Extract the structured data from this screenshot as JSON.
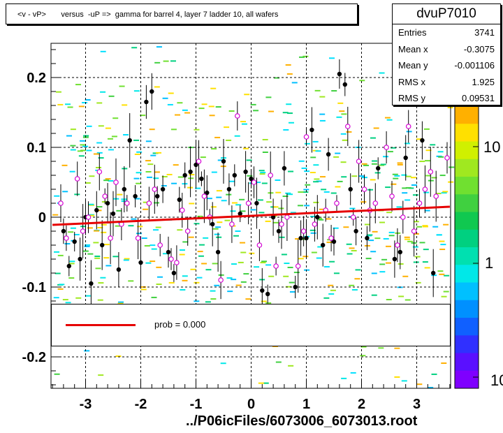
{
  "title": "<v - vP>       versus  -uP =>  gamma for barrel 4, layer 7 ladder 10, all wafers",
  "stats": {
    "name": "dvuP7010",
    "rows": [
      {
        "label": "Entries",
        "value": "3741"
      },
      {
        "label": "Mean x",
        "value": "-0.3075"
      },
      {
        "label": "Mean y",
        "value": "-0.001106"
      },
      {
        "label": "RMS x",
        "value": "1.925"
      },
      {
        "label": "RMS y",
        "value": "0.09531"
      }
    ]
  },
  "legend": {
    "label": "prob = 0.000"
  },
  "footer": "../P06icFiles/6073006_6073013.root",
  "colorbar": {
    "tick_labels": [
      "10",
      "1",
      "10"
    ]
  },
  "chart_data": {
    "type": "scatter",
    "xlim": [
      -3.65,
      3.65
    ],
    "ylim": [
      -0.25,
      0.25
    ],
    "x_ticks": [
      -3,
      -2,
      -1,
      0,
      1,
      2,
      3
    ],
    "x_tick_labels": [
      "-3",
      "-2",
      "-1",
      "0",
      "1",
      "2",
      "3"
    ],
    "y_ticks": [
      -0.2,
      -0.1,
      0,
      0.1,
      0.2
    ],
    "y_tick_labels": [
      "-0.2",
      "-0.1",
      "0",
      "0.1",
      "0.2"
    ],
    "grid": true,
    "fit_line": {
      "x": [
        -3.6,
        3.6
      ],
      "y": [
        -0.011,
        0.015
      ],
      "color": "#e60000"
    },
    "black_points": [
      [
        -3.4,
        -0.02
      ],
      [
        -3.3,
        -0.07
      ],
      [
        -3.2,
        -0.035
      ],
      [
        -3.1,
        -0.06
      ],
      [
        -3.0,
        0.0
      ],
      [
        -2.9,
        -0.095
      ],
      [
        -2.8,
        0.01
      ],
      [
        -2.7,
        -0.04
      ],
      [
        -2.6,
        0.02
      ],
      [
        -2.5,
        0.005
      ],
      [
        -2.4,
        -0.075
      ],
      [
        -2.3,
        0.04
      ],
      [
        -2.2,
        0.11
      ],
      [
        -2.1,
        0.03
      ],
      [
        -2.0,
        -0.065
      ],
      [
        -1.9,
        0.165
      ],
      [
        -1.8,
        0.18
      ],
      [
        -1.7,
        0.03
      ],
      [
        -1.6,
        0.04
      ],
      [
        -1.5,
        -0.05
      ],
      [
        -1.4,
        -0.08
      ],
      [
        -1.3,
        0.025
      ],
      [
        -1.2,
        0.06
      ],
      [
        -1.1,
        0.065
      ],
      [
        -1.0,
        0.075
      ],
      [
        -0.9,
        0.055
      ],
      [
        -0.8,
        0.035
      ],
      [
        -0.7,
        -0.01
      ],
      [
        -0.6,
        -0.05
      ],
      [
        -0.5,
        0.08
      ],
      [
        -0.4,
        0.04
      ],
      [
        -0.3,
        0.06
      ],
      [
        -0.2,
        0.005
      ],
      [
        -0.1,
        0.065
      ],
      [
        0.0,
        0.055
      ],
      [
        0.1,
        0.02
      ],
      [
        0.2,
        -0.105
      ],
      [
        0.3,
        -0.11
      ],
      [
        0.4,
        0.0
      ],
      [
        0.5,
        -0.02
      ],
      [
        0.6,
        0.07
      ],
      [
        0.8,
        -0.1
      ],
      [
        0.9,
        -0.03
      ],
      [
        1.0,
        -0.03
      ],
      [
        1.1,
        0.125
      ],
      [
        1.2,
        0.0
      ],
      [
        1.3,
        -0.04
      ],
      [
        1.4,
        0.09
      ],
      [
        1.5,
        -0.035
      ],
      [
        1.6,
        0.205
      ],
      [
        1.7,
        0.19
      ],
      [
        1.8,
        0.04
      ],
      [
        1.9,
        -0.02
      ],
      [
        2.1,
        -0.03
      ],
      [
        2.3,
        0.07
      ],
      [
        2.6,
        -0.06
      ],
      [
        2.7,
        -0.05
      ],
      [
        2.8,
        0.085
      ],
      [
        3.1,
        0.11
      ],
      [
        3.3,
        -0.08
      ]
    ],
    "open_points": [
      [
        -3.5,
        0.02
      ],
      [
        -3.4,
        -0.03
      ],
      [
        -3.2,
        0.055
      ],
      [
        -3.1,
        -0.02
      ],
      [
        -3.0,
        0.0
      ],
      [
        -2.8,
        0.065
      ],
      [
        -2.7,
        0.03
      ],
      [
        -2.6,
        -0.03
      ],
      [
        -2.5,
        0.05
      ],
      [
        -2.4,
        -0.01
      ],
      [
        -2.3,
        0.02
      ],
      [
        -2.1,
        -0.03
      ],
      [
        -1.9,
        0.02
      ],
      [
        -1.8,
        0.04
      ],
      [
        -1.7,
        -0.04
      ],
      [
        -1.5,
        -0.06
      ],
      [
        -1.4,
        -0.065
      ],
      [
        -1.3,
        0.01
      ],
      [
        -1.2,
        -0.02
      ],
      [
        -1.0,
        0.08
      ],
      [
        -0.9,
        0.03
      ],
      [
        -0.8,
        0.0
      ],
      [
        -0.6,
        -0.09
      ],
      [
        -0.4,
        -0.01
      ],
      [
        -0.3,
        0.145
      ],
      [
        -0.1,
        0.02
      ],
      [
        0.0,
        0.05
      ],
      [
        0.1,
        -0.04
      ],
      [
        0.3,
        0.06
      ],
      [
        0.4,
        -0.07
      ],
      [
        0.5,
        -0.01
      ],
      [
        0.6,
        0.0
      ],
      [
        0.8,
        -0.07
      ],
      [
        0.9,
        -0.02
      ],
      [
        0.95,
        0.115
      ],
      [
        1.1,
        -0.01
      ],
      [
        1.3,
        0.01
      ],
      [
        1.4,
        -0.03
      ],
      [
        1.5,
        0.02
      ],
      [
        1.7,
        0.13
      ],
      [
        1.8,
        0.0
      ],
      [
        1.9,
        0.08
      ],
      [
        2.0,
        0.04
      ],
      [
        2.1,
        0.01
      ],
      [
        2.2,
        0.02
      ],
      [
        2.4,
        0.1
      ],
      [
        2.5,
        0.03
      ],
      [
        2.6,
        -0.04
      ],
      [
        2.7,
        0.0
      ],
      [
        2.8,
        0.13
      ],
      [
        2.9,
        -0.02
      ],
      [
        3.0,
        0.02
      ],
      [
        3.1,
        0.04
      ],
      [
        3.2,
        0.065
      ],
      [
        3.3,
        0.03
      ],
      [
        3.5,
        0.085
      ]
    ],
    "colorbar_colors": [
      "#7f00ff",
      "#5a10ff",
      "#3030ff",
      "#1060ff",
      "#0090ff",
      "#00c0ff",
      "#00e8e8",
      "#00e0b0",
      "#00d080",
      "#10c850",
      "#40d040",
      "#70e030",
      "#a0e820",
      "#d0f000",
      "#ffe000",
      "#ffb000"
    ]
  }
}
